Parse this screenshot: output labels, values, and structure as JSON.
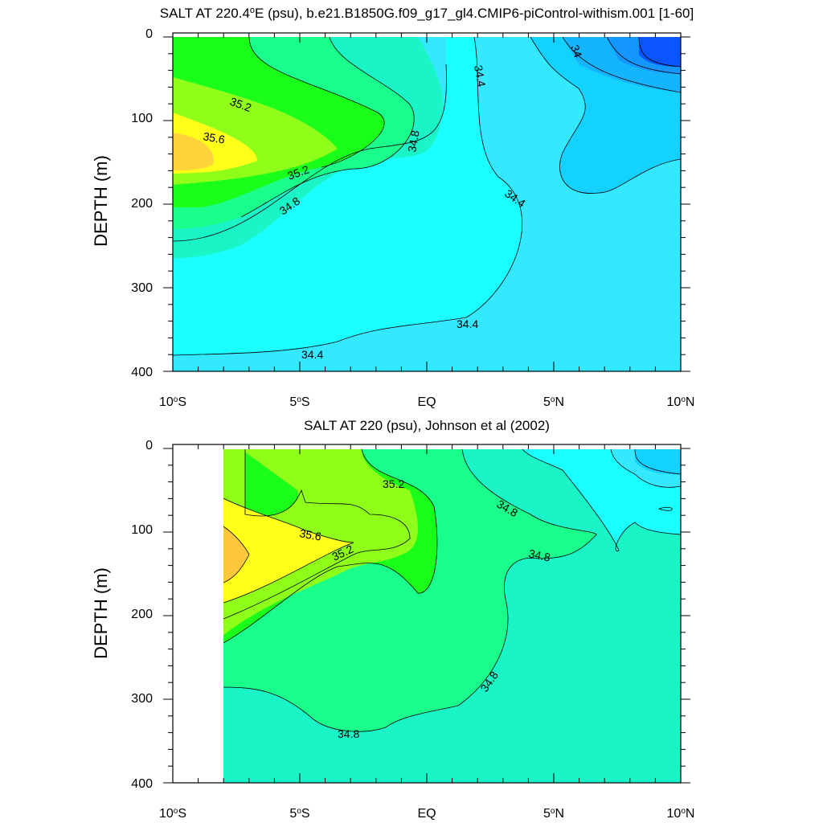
{
  "chart_data": [
    {
      "type": "contour",
      "title_prefix": "SALT AT 220.4",
      "title_sup": "o",
      "title_suffix": "E (psu), b.e21.B1850G.f09_g17_gl4.CMIP6-piControl-withism.001 [1-60]",
      "ylabel": "DEPTH (m)",
      "xlim": [
        -10,
        10
      ],
      "ylim": [
        0,
        400
      ],
      "y_inverted": true,
      "x_ticks": [
        "10",
        "5",
        "EQ",
        "5",
        "10"
      ],
      "x_tick_suffixes": [
        "S",
        "S",
        "",
        "N",
        "N"
      ],
      "y_ticks": [
        "0",
        "100",
        "200",
        "300",
        "400"
      ],
      "contour_interval": 0.2,
      "contour_labels": [
        "35.2",
        "35.6",
        "35.2",
        "34.8",
        "34.8",
        "34.4",
        "34.4",
        "34",
        "34.4",
        "34.4"
      ],
      "colors": {
        "36.0": "#ffd33a",
        "35.8": "#ffff1a",
        "35.4": "#8fff1a",
        "35.2": "#1aff1a",
        "35.0": "#1aff8c",
        "34.8": "#1af5c8",
        "34.6": "#1affff",
        "34.4": "#33e8ff",
        "34.2": "#14d2ff",
        "34.0": "#14b4ff",
        "33.8": "#1496ff",
        "33.6": "#0a55ff"
      }
    },
    {
      "type": "contour",
      "title": "SALT AT 220 (psu), Johnson et al (2002)",
      "ylabel": "DEPTH (m)",
      "xlim": [
        -10,
        10
      ],
      "ylim": [
        0,
        400
      ],
      "y_inverted": true,
      "x_ticks": [
        "10",
        "5",
        "EQ",
        "5",
        "10"
      ],
      "x_tick_suffixes": [
        "S",
        "S",
        "",
        "N",
        "N"
      ],
      "y_ticks": [
        "0",
        "100",
        "200",
        "300",
        "400"
      ],
      "data_x_range": [
        -8,
        10
      ],
      "contour_labels": [
        "35.2",
        "35.6",
        "35.2",
        "34.8",
        "34.8",
        "34.8",
        "34.8"
      ]
    }
  ]
}
